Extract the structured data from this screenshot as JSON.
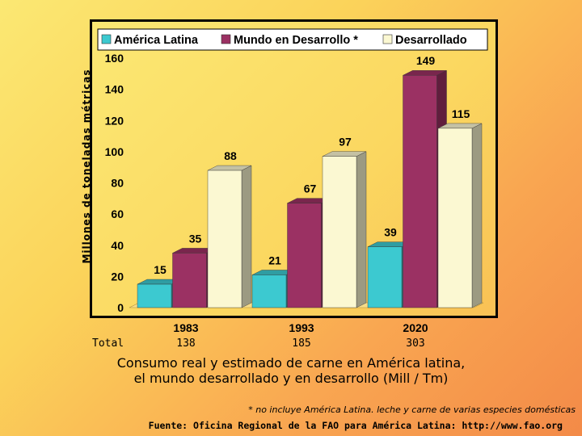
{
  "chart_data": {
    "type": "bar",
    "ylabel": "Millones de toneladas métricas",
    "ylim": [
      0,
      160
    ],
    "yticks": [
      0,
      20,
      40,
      60,
      80,
      100,
      120,
      140,
      160
    ],
    "categories": [
      "1983",
      "1993",
      "2020"
    ],
    "series": [
      {
        "name": "América Latina",
        "values": [
          15,
          21,
          39
        ],
        "color": "#3cc9d0"
      },
      {
        "name": "Mundo en Desarrollo *",
        "values": [
          35,
          67,
          149
        ],
        "color": "#9b3163"
      },
      {
        "name": "Desarrollado",
        "values": [
          88,
          97,
          115
        ],
        "color": "#fbf8d2"
      }
    ],
    "totals_label": "Total",
    "totals": [
      "138",
      "185",
      "303"
    ],
    "legend_position": "top"
  },
  "caption": {
    "line1": "Consumo real y estimado de carne en América latina,",
    "line2": "el mundo desarrollado y en desarrollo (Mill / Tm)"
  },
  "footnote": "* no incluye América Latina. leche y carne de varias especies domésticas",
  "source": "Fuente: Oficina Regional de la FAO para América Latina: http://www.fao.org"
}
